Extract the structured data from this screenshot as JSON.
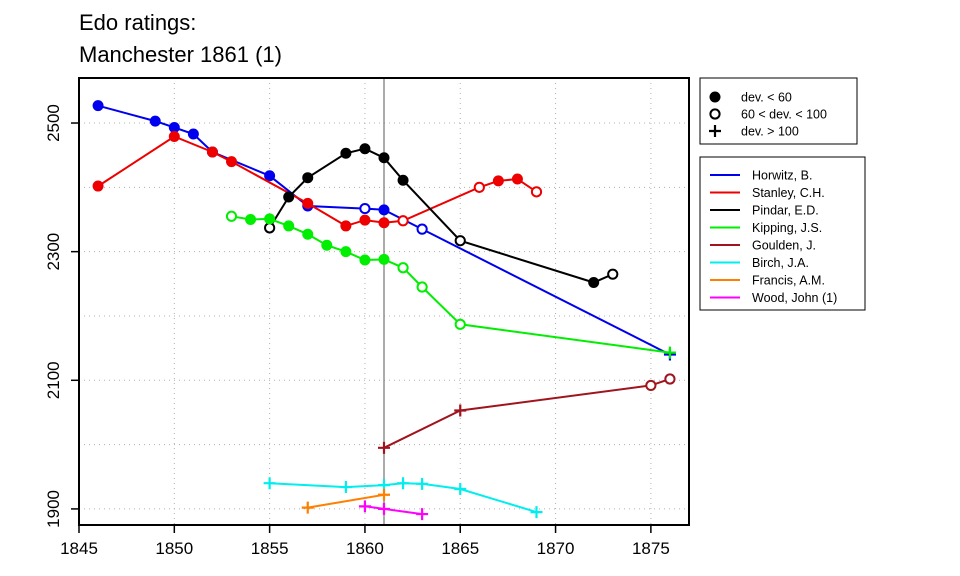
{
  "chart_data": {
    "type": "line",
    "title": [
      "Edo ratings:",
      "Manchester 1861 (1)"
    ],
    "xlabel": "",
    "ylabel": "",
    "xlim": [
      1845,
      1877
    ],
    "ylim": [
      1875,
      2570
    ],
    "x_ticks": [
      1845,
      1850,
      1855,
      1860,
      1865,
      1870,
      1875
    ],
    "y_ticks": [
      1900,
      2100,
      2300,
      2500
    ],
    "y_minor_gridlines": [
      1900,
      2000,
      2100,
      2200,
      2300,
      2400,
      2500
    ],
    "x_gridlines": [
      1850,
      1855,
      1860,
      1865,
      1870,
      1875
    ],
    "reference_line_x": 1861,
    "grid": true,
    "legend_position": "right",
    "marker_legend": [
      {
        "marker": "filled",
        "label": "dev. < 60"
      },
      {
        "marker": "open",
        "label": "60 < dev. < 100"
      },
      {
        "marker": "plus",
        "label": "dev. > 100"
      }
    ],
    "series": [
      {
        "name": "Horwitz, B.",
        "color": "#0000ee",
        "points": [
          {
            "x": 1846,
            "y": 2527,
            "m": "filled"
          },
          {
            "x": 1849,
            "y": 2503,
            "m": "filled"
          },
          {
            "x": 1850,
            "y": 2493,
            "m": "filled"
          },
          {
            "x": 1851,
            "y": 2483,
            "m": "filled"
          },
          {
            "x": 1852,
            "y": 2455,
            "m": "filled"
          },
          {
            "x": 1855,
            "y": 2418,
            "m": "filled"
          },
          {
            "x": 1857,
            "y": 2371,
            "m": "filled"
          },
          {
            "x": 1860,
            "y": 2367,
            "m": "open"
          },
          {
            "x": 1861,
            "y": 2365,
            "m": "filled"
          },
          {
            "x": 1863,
            "y": 2335,
            "m": "open"
          },
          {
            "x": 1876,
            "y": 2140,
            "m": "plus"
          }
        ]
      },
      {
        "name": "Stanley, C.H.",
        "color": "#ee0000",
        "points": [
          {
            "x": 1846,
            "y": 2402,
            "m": "filled"
          },
          {
            "x": 1850,
            "y": 2479,
            "m": "filled"
          },
          {
            "x": 1852,
            "y": 2455,
            "m": "filled"
          },
          {
            "x": 1853,
            "y": 2440,
            "m": "filled"
          },
          {
            "x": 1857,
            "y": 2375,
            "m": "filled"
          },
          {
            "x": 1859,
            "y": 2340,
            "m": "filled"
          },
          {
            "x": 1860,
            "y": 2349,
            "m": "filled"
          },
          {
            "x": 1861,
            "y": 2345,
            "m": "filled"
          },
          {
            "x": 1862,
            "y": 2348,
            "m": "open"
          },
          {
            "x": 1866,
            "y": 2400,
            "m": "open"
          },
          {
            "x": 1867,
            "y": 2410,
            "m": "filled"
          },
          {
            "x": 1868,
            "y": 2413,
            "m": "filled"
          },
          {
            "x": 1869,
            "y": 2393,
            "m": "open"
          }
        ]
      },
      {
        "name": "Pindar, E.D.",
        "color": "#000000",
        "points": [
          {
            "x": 1855,
            "y": 2337,
            "m": "open"
          },
          {
            "x": 1856,
            "y": 2385,
            "m": "filled"
          },
          {
            "x": 1857,
            "y": 2415,
            "m": "filled"
          },
          {
            "x": 1859,
            "y": 2453,
            "m": "filled"
          },
          {
            "x": 1860,
            "y": 2460,
            "m": "filled"
          },
          {
            "x": 1861,
            "y": 2446,
            "m": "filled"
          },
          {
            "x": 1862,
            "y": 2411,
            "m": "filled"
          },
          {
            "x": 1865,
            "y": 2317,
            "m": "open"
          },
          {
            "x": 1872,
            "y": 2252,
            "m": "filled"
          },
          {
            "x": 1873,
            "y": 2265,
            "m": "open"
          }
        ]
      },
      {
        "name": "Kipping, J.S.",
        "color": "#00ee00",
        "points": [
          {
            "x": 1853,
            "y": 2355,
            "m": "open"
          },
          {
            "x": 1854,
            "y": 2350,
            "m": "filled"
          },
          {
            "x": 1855,
            "y": 2351,
            "m": "filled"
          },
          {
            "x": 1856,
            "y": 2340,
            "m": "filled"
          },
          {
            "x": 1857,
            "y": 2327,
            "m": "filled"
          },
          {
            "x": 1858,
            "y": 2310,
            "m": "filled"
          },
          {
            "x": 1859,
            "y": 2300,
            "m": "filled"
          },
          {
            "x": 1860,
            "y": 2287,
            "m": "filled"
          },
          {
            "x": 1861,
            "y": 2288,
            "m": "filled"
          },
          {
            "x": 1862,
            "y": 2275,
            "m": "open"
          },
          {
            "x": 1863,
            "y": 2245,
            "m": "open"
          },
          {
            "x": 1865,
            "y": 2187,
            "m": "open"
          },
          {
            "x": 1876,
            "y": 2143,
            "m": "plus"
          }
        ]
      },
      {
        "name": "Goulden, J.",
        "color": "#a0141e",
        "points": [
          {
            "x": 1861,
            "y": 1995,
            "m": "plus"
          },
          {
            "x": 1865,
            "y": 2053,
            "m": "plus"
          },
          {
            "x": 1875,
            "y": 2092,
            "m": "open"
          },
          {
            "x": 1876,
            "y": 2102,
            "m": "open"
          }
        ]
      },
      {
        "name": "Birch, J.A.",
        "color": "#00eeee",
        "points": [
          {
            "x": 1855,
            "y": 1940,
            "m": "plus"
          },
          {
            "x": 1859,
            "y": 1934,
            "m": "plus"
          },
          {
            "x": 1861,
            "y": 1937,
            "m": "plus"
          },
          {
            "x": 1862,
            "y": 1940,
            "m": "plus"
          },
          {
            "x": 1863,
            "y": 1939,
            "m": "plus"
          },
          {
            "x": 1865,
            "y": 1931,
            "m": "plus"
          },
          {
            "x": 1869,
            "y": 1895,
            "m": "plus"
          }
        ]
      },
      {
        "name": "Francis, A.M.",
        "color": "#ff7f00",
        "points": [
          {
            "x": 1857,
            "y": 1902,
            "m": "plus"
          },
          {
            "x": 1861,
            "y": 1922,
            "m": "plus"
          }
        ]
      },
      {
        "name": "Wood, John (1)",
        "color": "#ff00ff",
        "points": [
          {
            "x": 1860,
            "y": 1904,
            "m": "plus"
          },
          {
            "x": 1861,
            "y": 1900,
            "m": "plus"
          },
          {
            "x": 1863,
            "y": 1892,
            "m": "plus"
          }
        ]
      }
    ]
  }
}
